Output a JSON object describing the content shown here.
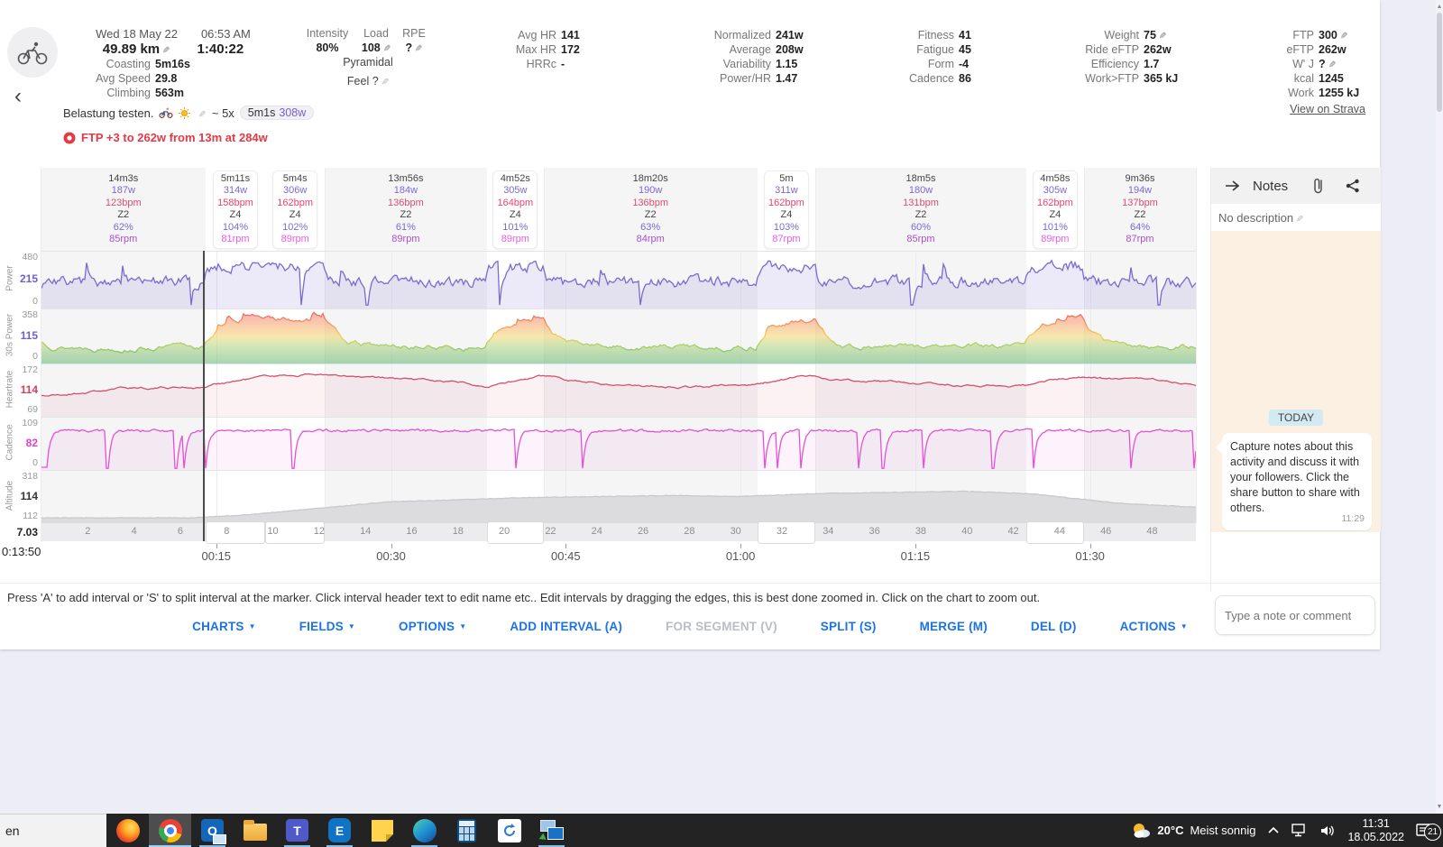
{
  "header": {
    "date": "Wed 18 May 22",
    "start_time": "06:53 AM",
    "distance": "49.89 km",
    "duration": "1:40:22",
    "left_stats": [
      {
        "label": "Coasting",
        "value": "5m16s"
      },
      {
        "label": "Avg Speed",
        "value": "29.8"
      },
      {
        "label": "Climbing",
        "value": "563m"
      }
    ],
    "intensity": {
      "labels": [
        "Intensity",
        "Load",
        "RPE"
      ],
      "values": [
        {
          "v": "80%",
          "edit": false
        },
        {
          "v": "108",
          "edit": true
        },
        {
          "v": "?",
          "edit": true
        }
      ],
      "style": "Pyramidal",
      "feel_label": "Feel",
      "feel_value": "?"
    },
    "columns": {
      "hr": [
        {
          "label": "Avg HR",
          "value": "141"
        },
        {
          "label": "Max HR",
          "value": "172"
        },
        {
          "label": "HRRc",
          "value": "-"
        }
      ],
      "power": [
        {
          "label": "Normalized",
          "value": "241w"
        },
        {
          "label": "Average",
          "value": "208w"
        },
        {
          "label": "Variability",
          "value": "1.15"
        },
        {
          "label": "Power/HR",
          "value": "1.47"
        }
      ],
      "fitness": [
        {
          "label": "Fitness",
          "value": "41"
        },
        {
          "label": "Fatigue",
          "value": "45"
        },
        {
          "label": "Form",
          "value": "-4"
        },
        {
          "label": "Cadence",
          "value": "86"
        }
      ],
      "weight": [
        {
          "label": "Weight",
          "value": "75",
          "edit": true
        },
        {
          "label": "Ride eFTP",
          "value": "262w"
        },
        {
          "label": "Efficiency",
          "value": "1.7"
        },
        {
          "label": "Work>FTP",
          "value": "365 kJ"
        }
      ],
      "ftp": [
        {
          "label": "FTP",
          "value": "300",
          "edit": true
        },
        {
          "label": "eFTP",
          "value": "262w"
        },
        {
          "label": "W' J",
          "value": "?",
          "edit": true
        },
        {
          "label": "kcal",
          "value": "1245"
        },
        {
          "label": "Work",
          "value": "1255 kJ"
        }
      ]
    },
    "strava_link": "View on Strava",
    "banner": {
      "text": "Belastung testen.",
      "approx": "~ 5x",
      "chip_duration": "5m1s",
      "chip_power": "308w"
    },
    "alert": "FTP +3 to 262w from 13m at 284w"
  },
  "chart": {
    "row_titles": [
      "Power",
      "30s Power",
      "Heartrate",
      "Cadence",
      "Altitude"
    ],
    "axes": {
      "power": [
        "480",
        "215",
        "0"
      ],
      "p30": [
        "358",
        "115",
        "0"
      ],
      "hr": [
        "172",
        "114",
        "69"
      ],
      "cad": [
        "109",
        "82",
        "0"
      ],
      "alt": [
        "318",
        "114",
        "112"
      ]
    },
    "marker": {
      "time": "0:13:50",
      "dist": "7.03",
      "s": 830
    },
    "total_km": 49.89,
    "dist_ticks": [
      2,
      4,
      6,
      8,
      10,
      12,
      14,
      16,
      18,
      20,
      22,
      24,
      26,
      28,
      30,
      32,
      34,
      36,
      38,
      40,
      42,
      44,
      46,
      48
    ],
    "time_ticks": [
      {
        "label": "00:15",
        "s": 900
      },
      {
        "label": "00:30",
        "s": 1800
      },
      {
        "label": "00:45",
        "s": 2700
      },
      {
        "label": "01:00",
        "s": 3600
      },
      {
        "label": "01:15",
        "s": 4500
      },
      {
        "label": "01:30",
        "s": 5400
      }
    ],
    "intervals": [
      {
        "duration": "14m3s",
        "dur_s": 843,
        "power": "187w",
        "hr": "123bpm",
        "zone": "Z2",
        "pct": "62%",
        "rpm": "85rpm",
        "highlight": false
      },
      {
        "duration": "5m11s",
        "dur_s": 311,
        "power": "314w",
        "hr": "158bpm",
        "zone": "Z4",
        "pct": "104%",
        "rpm": "81rpm",
        "highlight": true
      },
      {
        "duration": "5m4s",
        "dur_s": 304,
        "power": "306w",
        "hr": "162bpm",
        "zone": "Z4",
        "pct": "102%",
        "rpm": "89rpm",
        "highlight": true
      },
      {
        "duration": "13m56s",
        "dur_s": 836,
        "power": "184w",
        "hr": "136bpm",
        "zone": "Z2",
        "pct": "61%",
        "rpm": "89rpm",
        "highlight": false
      },
      {
        "duration": "4m52s",
        "dur_s": 292,
        "power": "305w",
        "hr": "164bpm",
        "zone": "Z4",
        "pct": "101%",
        "rpm": "89rpm",
        "highlight": true
      },
      {
        "duration": "18m20s",
        "dur_s": 1100,
        "power": "190w",
        "hr": "136bpm",
        "zone": "Z2",
        "pct": "63%",
        "rpm": "84rpm",
        "highlight": false
      },
      {
        "duration": "5m",
        "dur_s": 300,
        "power": "311w",
        "hr": "162bpm",
        "zone": "Z4",
        "pct": "103%",
        "rpm": "87rpm",
        "highlight": true
      },
      {
        "duration": "18m5s",
        "dur_s": 1085,
        "power": "180w",
        "hr": "131bpm",
        "zone": "Z2",
        "pct": "60%",
        "rpm": "85rpm",
        "highlight": false
      },
      {
        "duration": "4m58s",
        "dur_s": 298,
        "power": "305w",
        "hr": "162bpm",
        "zone": "Z4",
        "pct": "101%",
        "rpm": "89rpm",
        "highlight": true
      },
      {
        "duration": "9m36s",
        "dur_s": 576,
        "power": "194w",
        "hr": "137bpm",
        "zone": "Z2",
        "pct": "64%",
        "rpm": "87rpm",
        "highlight": false
      }
    ],
    "colors": {
      "power": "#7a6ad0",
      "power_fill": "rgba(122,106,208,0.14)",
      "hr": "#d5506c",
      "hr_fill": "rgba(213,80,108,0.08)",
      "cad": "#e84fd7",
      "cad_fill": "rgba(232,79,215,0.07)",
      "alt_fill": "#dcdcdf",
      "alt_line": "#c9c9cd",
      "zone_stops": [
        [
          "0",
          "#e8546f"
        ],
        [
          "0.3",
          "#f59a57"
        ],
        [
          "0.5",
          "#f2cf5a"
        ],
        [
          "0.68",
          "#a7cf6d"
        ],
        [
          "1",
          "#4fae68"
        ]
      ]
    }
  },
  "notes": {
    "title": "Notes",
    "no_description": "No description",
    "today": "TODAY",
    "message": "Capture notes about this activity and discuss it with your followers. Click the share button to share with others.",
    "message_time": "11:29",
    "input_placeholder": "Type a note or comment"
  },
  "footer": {
    "instruction": "Press 'A' to add interval or 'S' to split interval at the marker. Click interval header text to edit name etc.. Edit intervals by dragging the edges, this is best done zoomed in. Click on the chart to zoom out.",
    "buttons": [
      {
        "label": "CHARTS",
        "caret": true
      },
      {
        "label": "FIELDS",
        "caret": true
      },
      {
        "label": "OPTIONS",
        "caret": true
      },
      {
        "label": "ADD INTERVAL (A)"
      },
      {
        "label": "FOR SEGMENT (V)",
        "disabled": true
      },
      {
        "label": "SPLIT (S)"
      },
      {
        "label": "MERGE (M)"
      },
      {
        "label": "DEL (D)"
      },
      {
        "label": "ACTIONS",
        "caret": true
      }
    ]
  },
  "taskbar": {
    "window_text": "en",
    "apps": [
      {
        "id": "firefox"
      },
      {
        "id": "chrome",
        "active": true,
        "running": true
      },
      {
        "id": "outlook",
        "glyph": "O",
        "running": true
      },
      {
        "id": "explorer"
      },
      {
        "id": "teams",
        "glyph": "T",
        "running": true
      },
      {
        "id": "etube",
        "glyph": "E",
        "running": true
      },
      {
        "id": "stickynotes"
      },
      {
        "id": "edge",
        "running": true
      },
      {
        "id": "calculator"
      },
      {
        "id": "sync"
      },
      {
        "id": "remote",
        "running": true
      }
    ],
    "weather_temp": "20°C",
    "weather_desc": "Meist sonnig",
    "clock_time": "11:31",
    "clock_date": "18.05.2022",
    "badge": "21"
  }
}
